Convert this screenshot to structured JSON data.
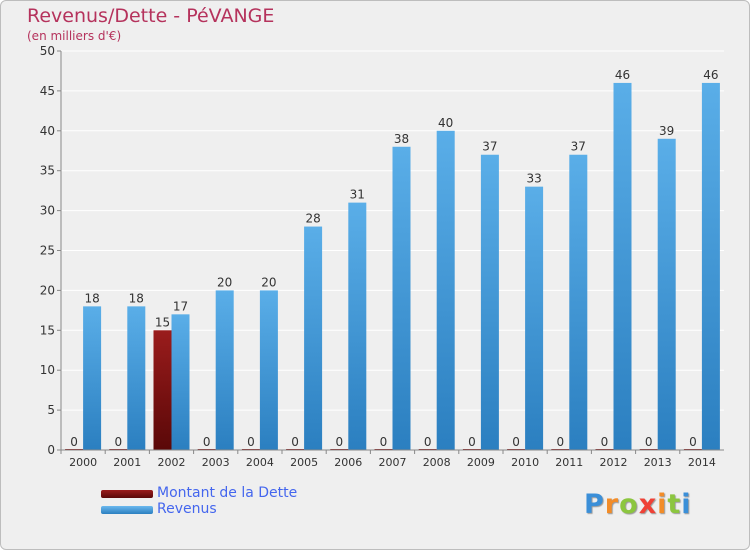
{
  "title": "Revenus/Dette - PéVANGE",
  "subtitle": "(en milliers d'€)",
  "logo": "Proxiti",
  "colors": {
    "dette": "#7a0f0f",
    "revenus": "#4a9fdf",
    "background": "#efefef",
    "title": "#b5325c",
    "legend_text": "#4466ee"
  },
  "chart_data": {
    "type": "bar",
    "categories": [
      "2000",
      "2001",
      "2002",
      "2003",
      "2004",
      "2005",
      "2006",
      "2007",
      "2008",
      "2009",
      "2010",
      "2011",
      "2012",
      "2013",
      "2014"
    ],
    "series": [
      {
        "name": "Montant de la Dette",
        "values": [
          0,
          0,
          15,
          0,
          0,
          0,
          0,
          0,
          0,
          0,
          0,
          0,
          0,
          0,
          0
        ]
      },
      {
        "name": "Revenus",
        "values": [
          18,
          18,
          17,
          20,
          20,
          28,
          31,
          38,
          40,
          37,
          33,
          37,
          46,
          39,
          46
        ]
      }
    ],
    "title": "Revenus/Dette - PéVANGE",
    "subtitle": "(en milliers d'€)",
    "ylim": [
      0,
      50
    ],
    "yticks": [
      0,
      5,
      10,
      15,
      20,
      25,
      30,
      35,
      40,
      45,
      50
    ],
    "grid": true,
    "legend_position": "bottom-left"
  }
}
